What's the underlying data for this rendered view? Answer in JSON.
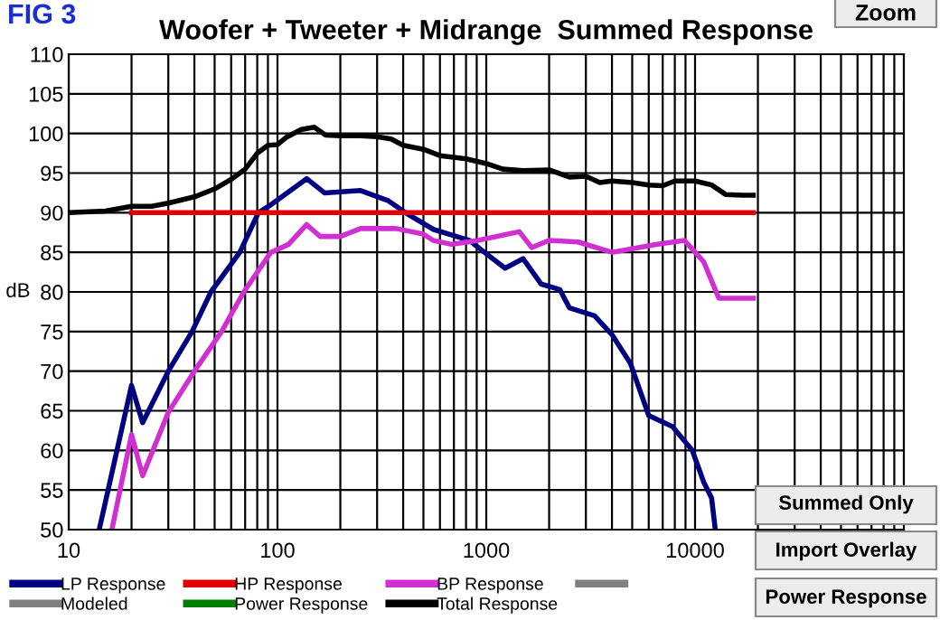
{
  "chart_data": {
    "type": "line",
    "title": "Woofer + Tweeter + Midrange  Summed Response",
    "ylabel": "dB",
    "annotations": [
      "FIG 3",
      "Zoom",
      "Summed Only",
      "Import Overlay",
      "Power Response"
    ],
    "xlim": [
      10,
      100000
    ],
    "ylim": [
      50,
      110
    ],
    "xticks": [
      10,
      100,
      1000,
      10000
    ],
    "yticks": [
      50,
      55,
      60,
      65,
      70,
      75,
      80,
      85,
      90,
      95,
      100,
      105,
      110
    ],
    "log": "x",
    "grid": true,
    "legend": "bottom",
    "line_style": "solid",
    "marker": "none",
    "series": [
      {
        "name": "LP Response",
        "color": "#000080",
        "x": [
          14,
          20,
          22.6,
          30,
          39,
          48,
          66,
          81,
          93,
          138,
          168,
          250,
          340,
          410,
          557,
          830,
          980,
          1230,
          1500,
          1830,
          2250,
          2500,
          3300,
          4000,
          4900,
          6000,
          7800,
          9700,
          11000,
          12000,
          12500
        ],
        "values": [
          50,
          68.2,
          63.5,
          70,
          75,
          80,
          85,
          90,
          91,
          94.3,
          92.5,
          92.8,
          91.5,
          90,
          87.9,
          86.5,
          85,
          83,
          84.2,
          81,
          80.3,
          78,
          77,
          74.6,
          71,
          64.4,
          63,
          60,
          56,
          54,
          50
        ]
      },
      {
        "name": "HP Response",
        "color": "#e00000",
        "x": [
          20,
          19000
        ],
        "values": [
          90,
          90
        ]
      },
      {
        "name": "BP Response",
        "color": "#d030d0",
        "x": [
          16.1,
          20,
          22.6,
          30,
          40,
          54,
          69,
          93,
          113,
          138,
          160,
          200,
          250,
          370,
          500,
          557,
          680,
          910,
          1440,
          1650,
          2000,
          2750,
          4000,
          6500,
          8900,
          11000,
          13000,
          19000
        ],
        "values": [
          50,
          62,
          56.8,
          64.8,
          70,
          75,
          80,
          85,
          86,
          88.5,
          87,
          87,
          88,
          88,
          87.3,
          86.5,
          86,
          86.5,
          87.6,
          85.6,
          86.5,
          86.3,
          85,
          86,
          86.5,
          83.8,
          79.2,
          79.2
        ]
      },
      {
        "color": "#808080"
      },
      {
        "name": "Modeled",
        "color": "#808080"
      },
      {
        "name": "Power Response",
        "color": "#008000"
      },
      {
        "name": "Total Response",
        "color": "#000000",
        "x": [
          10,
          15,
          20,
          25,
          30,
          40,
          50,
          60,
          70,
          80,
          90,
          100,
          110,
          130,
          150,
          170,
          200,
          250,
          300,
          350,
          400,
          500,
          600,
          800,
          1000,
          1200,
          1500,
          2000,
          2500,
          3000,
          3500,
          4000,
          5000,
          6000,
          7000,
          8000,
          10000,
          12000,
          14000,
          17000,
          19000
        ],
        "values": [
          90,
          90.2,
          90.8,
          90.8,
          91.2,
          92,
          93,
          94.2,
          95.5,
          97.5,
          98.5,
          98.6,
          99.5,
          100.5,
          100.8,
          99.8,
          99.7,
          99.7,
          99.6,
          99.3,
          98.5,
          98,
          97.2,
          96.8,
          96.2,
          95.5,
          95.3,
          95.4,
          94.5,
          94.6,
          93.8,
          94,
          93.8,
          93.5,
          93.4,
          94,
          94,
          93.5,
          92.3,
          92.2,
          92.2
        ]
      }
    ]
  }
}
